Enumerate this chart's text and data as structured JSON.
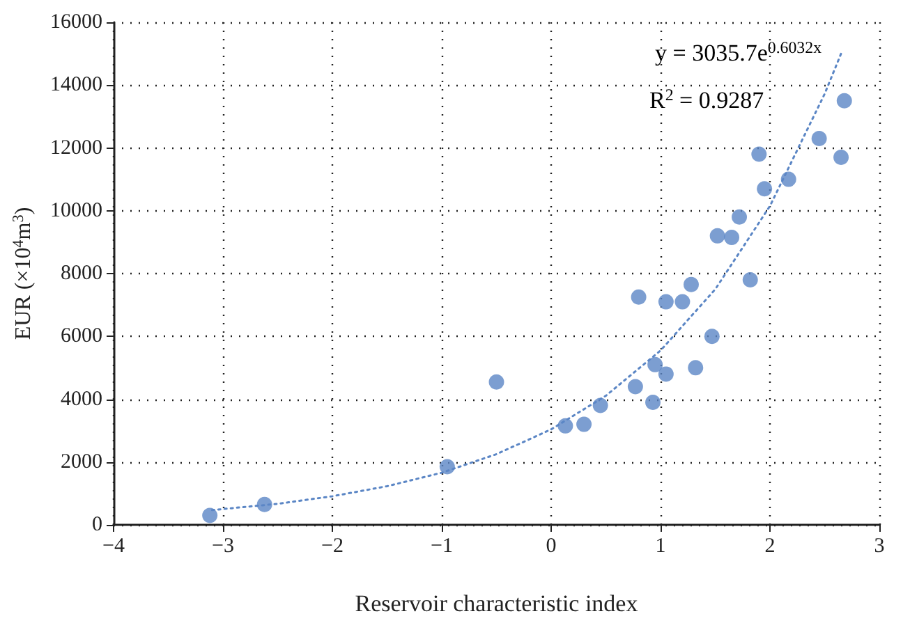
{
  "chart_data": {
    "type": "scatter",
    "xlabel": "Reservoir characteristic index",
    "ylabel": "EUR (×10$^{4}$m$^{3}$)",
    "xlim": [
      -4,
      3
    ],
    "xticks": [
      -4,
      -3,
      -2,
      -1,
      0,
      1,
      2,
      3
    ],
    "ylim": [
      0,
      16000
    ],
    "yticks": [
      0,
      2000,
      4000,
      6000,
      8000,
      10000,
      12000,
      14000,
      16000
    ],
    "grid": true,
    "marker": "circle",
    "annotations": [
      "y = 3035.7e$^{0.6032x}$",
      "R$^{2}$ = 0.9287"
    ],
    "series": [
      {
        "color": "#5b86c5",
        "x": [
          -3.12,
          -2.62,
          -0.95,
          -0.5,
          0.13,
          0.3,
          0.45,
          0.77,
          0.8,
          0.93,
          0.95,
          1.05,
          1.05,
          1.2,
          1.28,
          1.32,
          1.47,
          1.52,
          1.65,
          1.72,
          1.82,
          1.9,
          1.95,
          2.17,
          2.45,
          2.65,
          2.68
        ],
        "values": [
          300,
          650,
          1850,
          4550,
          3150,
          3200,
          3800,
          4400,
          7250,
          3900,
          5100,
          4800,
          7100,
          7100,
          7650,
          5000,
          6000,
          9200,
          9150,
          9800,
          7800,
          11800,
          10700,
          11000,
          12300,
          11700,
          13500
        ]
      },
      {
        "type": "line",
        "color": "#5b86c5",
        "line_style": "dotted",
        "marker": "none",
        "x": [
          -3.1,
          -2.5,
          -2,
          -1.5,
          -1,
          -0.5,
          0,
          0.5,
          1,
          1.5,
          2,
          2.5,
          2.65
        ],
        "values": [
          470,
          670,
          910,
          1230,
          1660,
          2250,
          3040,
          4110,
          5550,
          7500,
          10150,
          13720,
          15000
        ]
      }
    ]
  }
}
